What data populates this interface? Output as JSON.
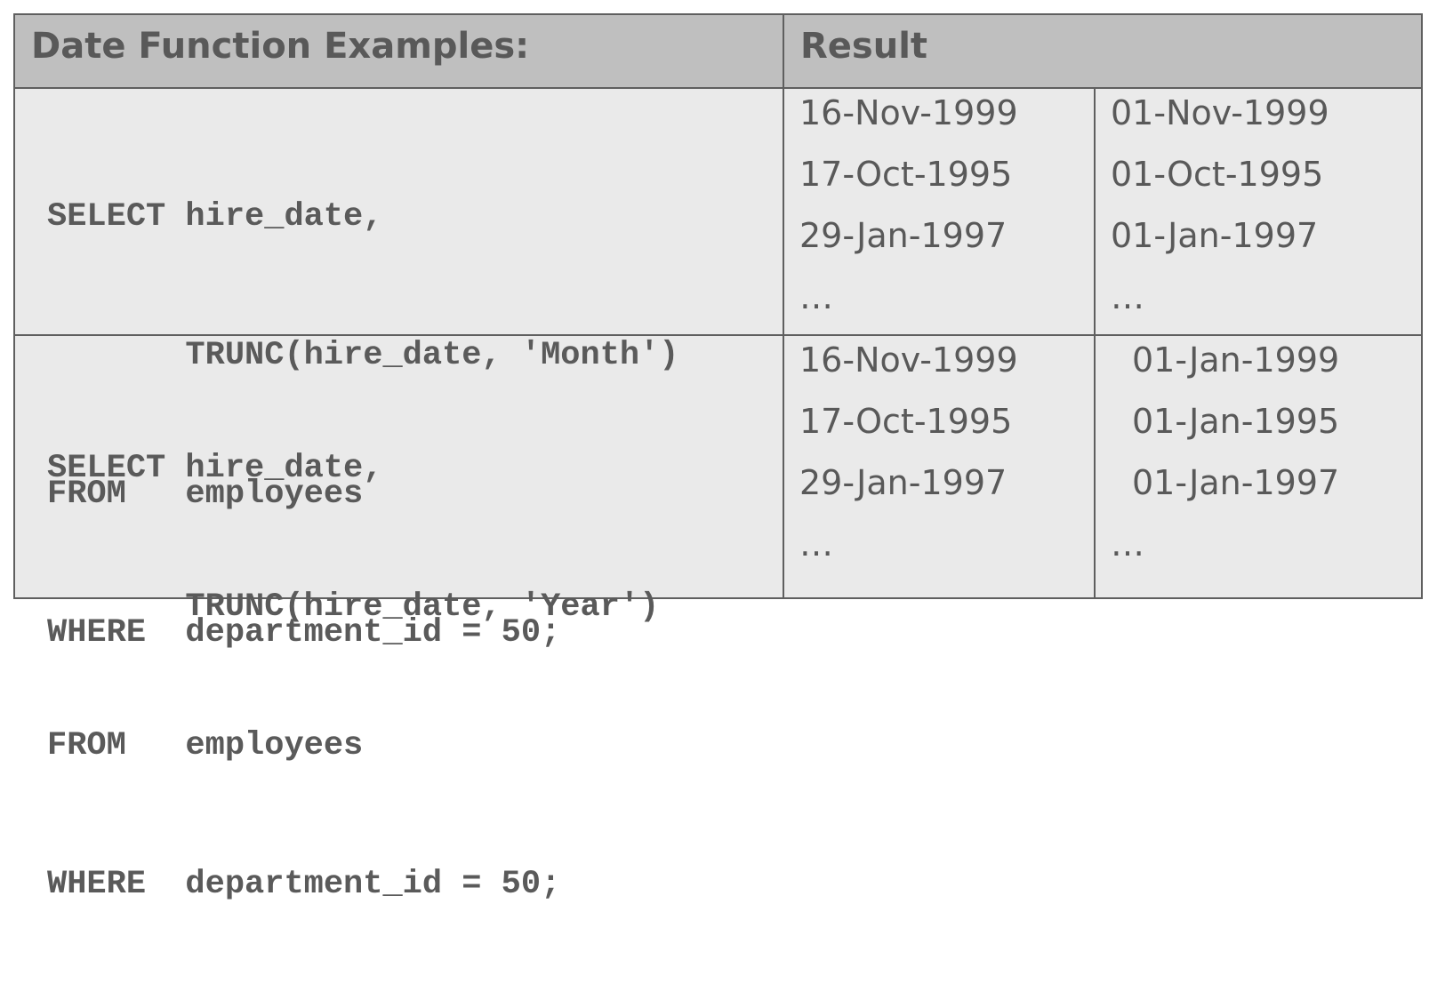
{
  "header": {
    "examples_label": "Date Function Examples:",
    "result_label": "Result"
  },
  "rows": [
    {
      "code_lines": [
        "SELECT hire_date,",
        "       TRUNC(hire_date, 'Month')",
        "FROM   employees",
        "WHERE  department_id = 50;"
      ],
      "hire_dates": [
        "16-Nov-1999",
        "17-Oct-1995",
        "29-Jan-1997",
        "…"
      ],
      "truncated": [
        "01-Nov-1999",
        "01-Oct-1995",
        "01-Jan-1997",
        "…"
      ]
    },
    {
      "code_lines": [
        "SELECT hire_date,",
        "       TRUNC(hire_date, 'Year')",
        "FROM   employees",
        "WHERE  department_id = 50;"
      ],
      "hire_dates": [
        "16-Nov-1999",
        "17-Oct-1995",
        "29-Jan-1997",
        "…"
      ],
      "truncated": [
        "01-Jan-1999",
        "01-Jan-1995",
        "01-Jan-1997",
        "…"
      ]
    }
  ]
}
